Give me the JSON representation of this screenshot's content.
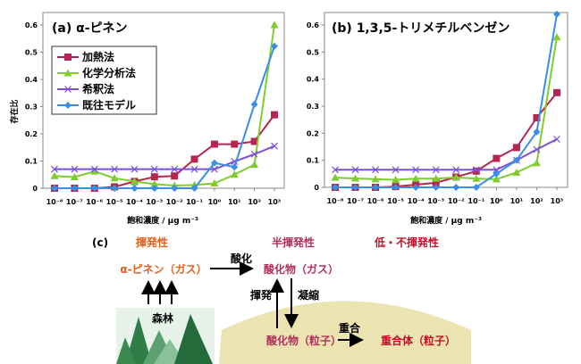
{
  "chart_data": [
    {
      "type": "line",
      "title": "(a) α-ピネン",
      "xlabel": "飽和濃度 / μg m⁻³",
      "ylabel": "存在比",
      "categories": [
        "10⁻⁸",
        "10⁻⁷",
        "10⁻⁶",
        "10⁻⁵",
        "10⁻⁴",
        "10⁻³",
        "10⁻²",
        "10⁻¹",
        "10⁰",
        "10¹",
        "10²",
        "10³"
      ],
      "yticks": [
        "0",
        "0.1",
        "0.2",
        "0.3",
        "0.4",
        "0.5",
        "0.6"
      ],
      "ylim": [
        0,
        0.65
      ],
      "legend": "top-left",
      "series": [
        {
          "name": "加熱法",
          "color": "#b5254f",
          "marker": "square",
          "values": [
            0,
            0,
            0,
            0.005,
            0.025,
            0.042,
            0.045,
            0.107,
            0.162,
            0.162,
            0.172,
            0.27
          ]
        },
        {
          "name": "化学分析法",
          "color": "#7fcc2e",
          "marker": "triangle",
          "values": [
            0.045,
            0.041,
            0.062,
            0.037,
            0.025,
            0.015,
            0.01,
            0.012,
            0.018,
            0.05,
            0.087,
            0.6
          ]
        },
        {
          "name": "希釈法",
          "color": "#7b4fd6",
          "marker": "x",
          "values": [
            0.07,
            0.07,
            0.07,
            0.07,
            0.07,
            0.07,
            0.07,
            0.07,
            0.07,
            0.098,
            0.125,
            0.155
          ]
        },
        {
          "name": "既往モデル",
          "color": "#3a8ee6",
          "marker": "diamond",
          "values": [
            0,
            0,
            0,
            0,
            0,
            0,
            0,
            0,
            0.093,
            0.078,
            0.308,
            0.522
          ]
        }
      ]
    },
    {
      "type": "line",
      "title": "(b) 1,3,5-トリメチルベンゼン",
      "xlabel": "飽和濃度 / μg m⁻³",
      "categories": [
        "10⁻⁸",
        "10⁻⁷",
        "10⁻⁶",
        "10⁻⁵",
        "10⁻⁴",
        "10⁻³",
        "10⁻²",
        "10⁻¹",
        "10⁰",
        "10¹",
        "10²",
        "10³"
      ],
      "yticks": [
        "0",
        "0.1",
        "0.2",
        "0.3",
        "0.4",
        "0.5",
        "0.6"
      ],
      "ylim": [
        0,
        0.65
      ],
      "series": [
        {
          "color": "#b5254f",
          "marker": "square",
          "values": [
            0,
            0,
            0,
            0.003,
            0.01,
            0.017,
            0.038,
            0.06,
            0.107,
            0.147,
            0.257,
            0.35
          ]
        },
        {
          "color": "#7fcc2e",
          "marker": "triangle",
          "values": [
            0.036,
            0.033,
            0.03,
            0.028,
            0.032,
            0.032,
            0.037,
            0.032,
            0.03,
            0.055,
            0.09,
            0.555
          ]
        },
        {
          "color": "#7b4fd6",
          "marker": "x",
          "values": [
            0.065,
            0.065,
            0.065,
            0.065,
            0.065,
            0.065,
            0.065,
            0.065,
            0.065,
            0.1,
            0.14,
            0.178
          ]
        },
        {
          "color": "#3a8ee6",
          "marker": "diamond",
          "values": [
            0,
            0,
            0,
            0,
            0,
            0,
            0,
            0,
            0.05,
            0.1,
            0.205,
            0.64
          ]
        }
      ]
    }
  ],
  "diagram": {
    "label": "(c)",
    "volatile": "揮発性",
    "semi_volatile": "半揮発性",
    "low_volatile": "低・不揮発性",
    "alpha_pinene_gas": "α-ピネン（ガス）",
    "oxidation": "酸化",
    "oxide_gas": "酸化物（ガス）",
    "forest": "森林",
    "evaporation": "揮発",
    "condensation": "凝縮",
    "oxide_particle": "酸化物（粒子）",
    "polymerization": "重合",
    "polymer_particle": "重合体（粒子）",
    "colors": {
      "volatile": "#e0601a",
      "semi": "#b0305e",
      "low": "#c0102a",
      "hill": "#ebe3b0",
      "forest": "#2e7d46"
    }
  }
}
